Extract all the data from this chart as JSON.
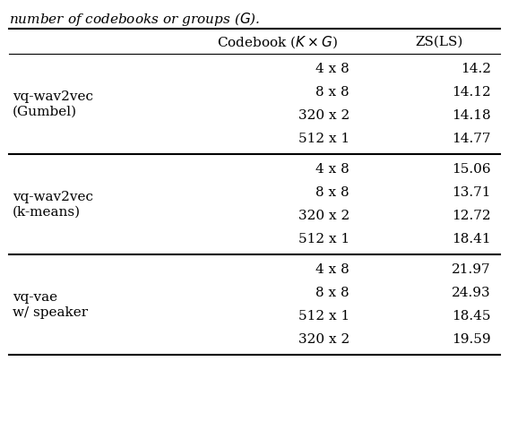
{
  "caption_top": "number of codebooks or groups ($G$).",
  "sections": [
    {
      "row_label_lines": [
        "vq-wav2vec",
        "(Gumbel)"
      ],
      "rows": [
        {
          "codebook": "4 x 8",
          "zs": "14.2"
        },
        {
          "codebook": "8 x 8",
          "zs": "14.12"
        },
        {
          "codebook": "320 x 2",
          "zs": "14.18"
        },
        {
          "codebook": "512 x 1",
          "zs": "14.77"
        }
      ]
    },
    {
      "row_label_lines": [
        "vq-wav2vec",
        "(k-means)"
      ],
      "rows": [
        {
          "codebook": "4 x 8",
          "zs": "15.06"
        },
        {
          "codebook": "8 x 8",
          "zs": "13.71"
        },
        {
          "codebook": "320 x 2",
          "zs": "12.72"
        },
        {
          "codebook": "512 x 1",
          "zs": "18.41"
        }
      ]
    },
    {
      "row_label_lines": [
        "vq-vae",
        "w/ speaker"
      ],
      "rows": [
        {
          "codebook": "4 x 8",
          "zs": "21.97"
        },
        {
          "codebook": "8 x 8",
          "zs": "24.93"
        },
        {
          "codebook": "512 x 1",
          "zs": "18.45"
        },
        {
          "codebook": "320 x 2",
          "zs": "19.59"
        }
      ]
    }
  ],
  "font_size": 11,
  "header_font_size": 11,
  "caption_font_size": 11,
  "bg_color": "#ffffff",
  "text_color": "#000000",
  "line_color": "#000000",
  "lw_thick": 1.5,
  "lw_thin": 0.8
}
